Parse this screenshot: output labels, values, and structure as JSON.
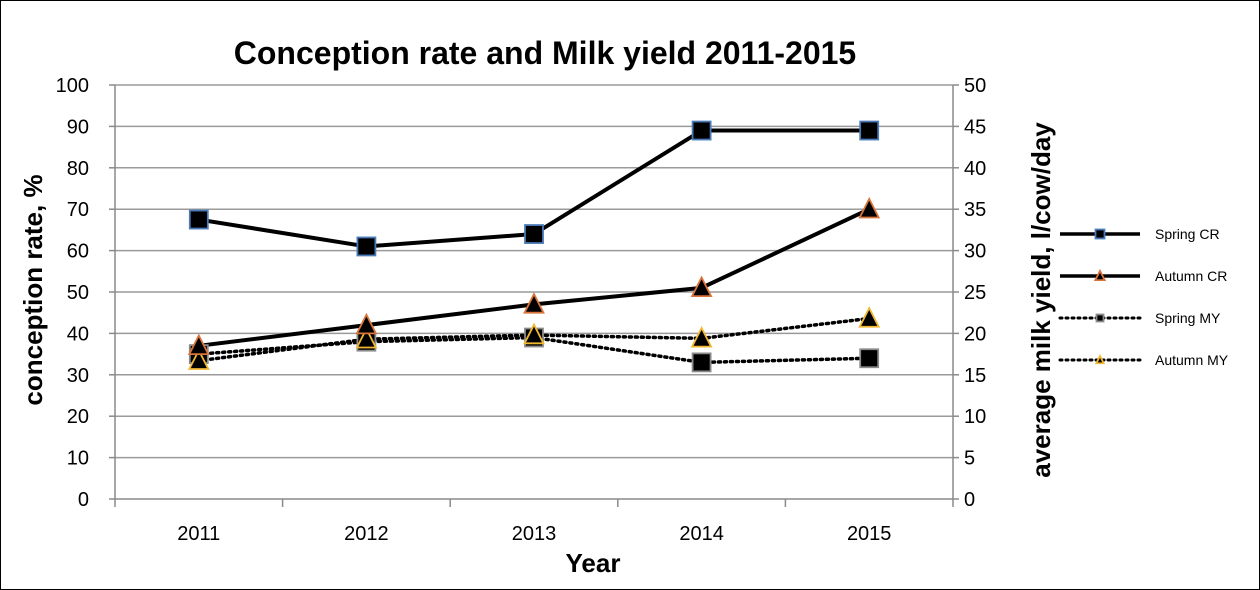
{
  "chart_data": {
    "type": "line",
    "title": "Conception rate and Milk yield 2011-2015",
    "xlabel": "Year",
    "ylabel_left": "conception rate, %",
    "ylabel_right": "average milk yield, l/cow/day",
    "categories": [
      "2011",
      "2012",
      "2013",
      "2014",
      "2015"
    ],
    "ylim_left": [
      0,
      100
    ],
    "ylim_right": [
      0,
      50
    ],
    "yticks_left": [
      0,
      10,
      20,
      30,
      40,
      50,
      60,
      70,
      80,
      90,
      100
    ],
    "yticks_right": [
      0,
      5,
      10,
      15,
      20,
      25,
      30,
      35,
      40,
      45,
      50
    ],
    "grid": true,
    "legend_position": "right",
    "series": [
      {
        "name": "Spring CR",
        "axis": "left",
        "values": [
          67.5,
          61,
          64,
          89,
          89
        ],
        "marker": "square",
        "line": "solid",
        "marker_edge": "#4a7ab8"
      },
      {
        "name": "Autumn CR",
        "axis": "left",
        "values": [
          37,
          42,
          47,
          51,
          70
        ],
        "marker": "triangle",
        "line": "solid",
        "marker_edge": "#d9743a"
      },
      {
        "name": "Spring MY",
        "axis": "right",
        "values": [
          17.5,
          19,
          19.5,
          16.5,
          17
        ],
        "marker": "square",
        "line": "dotted",
        "marker_edge": "#8a8a8a"
      },
      {
        "name": "Autumn MY",
        "axis": "right",
        "values": [
          16.7,
          19.3,
          19.8,
          19.4,
          21.8
        ],
        "marker": "triangle",
        "line": "dotted",
        "marker_edge": "#f0b830"
      }
    ]
  }
}
